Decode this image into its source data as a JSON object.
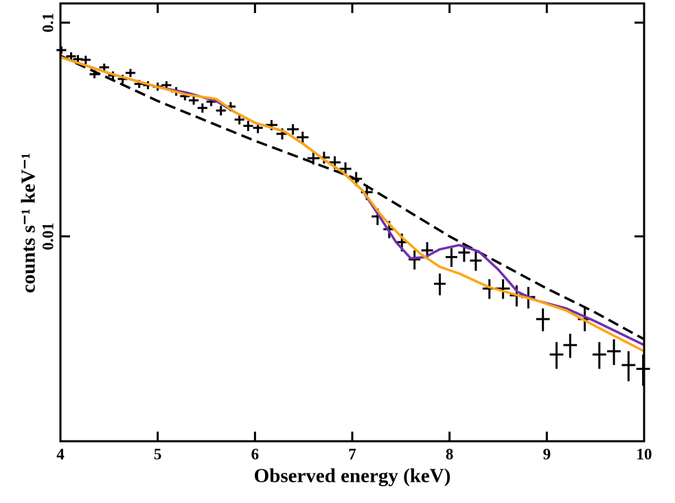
{
  "chart_data": {
    "type": "line",
    "x_label": "Observed energy (keV)",
    "y_label": "counts s⁻¹ keV⁻¹",
    "xlim": [
      4,
      10
    ],
    "xticks": [
      4,
      5,
      6,
      7,
      8,
      9,
      10
    ],
    "ylim": [
      0.0011,
      0.123
    ],
    "yticks": [
      0.01,
      0.1
    ],
    "y_log": true,
    "series": [
      {
        "style": "crosses",
        "color": "#000000",
        "x": [
          4.01,
          4.11,
          4.18,
          4.26,
          4.35,
          4.45,
          4.54,
          4.64,
          4.72,
          4.81,
          4.9,
          5.0,
          5.09,
          5.19,
          5.28,
          5.37,
          5.46,
          5.55,
          5.65,
          5.75,
          5.84,
          5.93,
          6.03,
          6.17,
          6.28,
          6.39,
          6.49,
          6.6,
          6.71,
          6.82,
          6.93,
          7.04,
          7.15,
          7.26,
          7.38,
          7.51,
          7.64,
          7.77,
          7.9,
          8.02,
          8.15,
          8.27,
          8.41,
          8.55,
          8.69,
          8.81,
          8.96,
          9.1,
          9.24,
          9.39,
          9.54,
          9.69,
          9.84,
          9.99
        ],
        "xerr": [
          0.05,
          0.05,
          0.05,
          0.05,
          0.05,
          0.05,
          0.05,
          0.05,
          0.05,
          0.05,
          0.05,
          0.05,
          0.05,
          0.05,
          0.05,
          0.05,
          0.05,
          0.05,
          0.05,
          0.05,
          0.05,
          0.05,
          0.05,
          0.06,
          0.06,
          0.06,
          0.06,
          0.06,
          0.06,
          0.06,
          0.06,
          0.06,
          0.06,
          0.06,
          0.06,
          0.06,
          0.06,
          0.06,
          0.06,
          0.06,
          0.06,
          0.06,
          0.07,
          0.07,
          0.07,
          0.07,
          0.07,
          0.07,
          0.07,
          0.07,
          0.07,
          0.07,
          0.07,
          0.07
        ],
        "values": [
          0.0744,
          0.0696,
          0.0675,
          0.067,
          0.0574,
          0.0618,
          0.0566,
          0.0545,
          0.0582,
          0.0517,
          0.051,
          0.0502,
          0.051,
          0.0477,
          0.0453,
          0.0433,
          0.0399,
          0.0427,
          0.0388,
          0.0405,
          0.0352,
          0.0329,
          0.0322,
          0.0332,
          0.0302,
          0.0317,
          0.0291,
          0.0232,
          0.0234,
          0.0222,
          0.0207,
          0.0186,
          0.0161,
          0.0124,
          0.0108,
          0.0094,
          0.0078,
          0.0086,
          0.006,
          0.008,
          0.0084,
          0.0077,
          0.0057,
          0.0057,
          0.0053,
          0.0052,
          0.0041,
          0.0028,
          0.0031,
          0.0041,
          0.0028,
          0.0029,
          0.0025,
          0.0024
        ],
        "yerr": [
          0.003,
          0.003,
          0.003,
          0.003,
          0.0025,
          0.0025,
          0.0025,
          0.0025,
          0.0025,
          0.0022,
          0.0022,
          0.0022,
          0.0022,
          0.0022,
          0.002,
          0.002,
          0.002,
          0.002,
          0.002,
          0.002,
          0.0018,
          0.0018,
          0.0018,
          0.0018,
          0.0018,
          0.0018,
          0.0018,
          0.0015,
          0.0015,
          0.0015,
          0.0015,
          0.0014,
          0.0013,
          0.0011,
          0.001,
          0.0009,
          0.0008,
          0.0008,
          0.0007,
          0.0008,
          0.0008,
          0.0008,
          0.0006,
          0.0006,
          0.0006,
          0.0006,
          0.0005,
          0.0004,
          0.0004,
          0.0005,
          0.0004,
          0.0004,
          0.0004,
          0.0004
        ]
      },
      {
        "style": "dashed",
        "color": "#000000",
        "x": [
          4,
          5,
          6,
          7,
          8,
          9,
          9.5,
          10
        ],
        "values": [
          0.07,
          0.043,
          0.028,
          0.0189,
          0.01,
          0.0057,
          0.0044,
          0.0033
        ]
      },
      {
        "style": "solid",
        "color": "#7030b0",
        "x": [
          4,
          4.5,
          5,
          5.3,
          5.6,
          5.8,
          6.0,
          6.3,
          6.5,
          6.7,
          6.9,
          7.1,
          7.3,
          7.45,
          7.6,
          7.75,
          7.9,
          8.1,
          8.3,
          8.5,
          8.7,
          8.9,
          9.2,
          9.5,
          10
        ],
        "values": [
          0.069,
          0.058,
          0.05,
          0.047,
          0.043,
          0.038,
          0.034,
          0.031,
          0.027,
          0.023,
          0.02,
          0.0165,
          0.012,
          0.0094,
          0.0079,
          0.008,
          0.0087,
          0.0091,
          0.0085,
          0.007,
          0.0055,
          0.005,
          0.0046,
          0.004,
          0.0031
        ]
      },
      {
        "style": "solid",
        "color": "#ffa510",
        "x": [
          4,
          4.5,
          5,
          5.3,
          5.6,
          5.8,
          6.0,
          6.3,
          6.5,
          6.7,
          6.9,
          7.1,
          7.3,
          7.5,
          7.7,
          7.9,
          8.1,
          8.4,
          8.7,
          8.9,
          9.2,
          9.5,
          10
        ],
        "values": [
          0.069,
          0.058,
          0.05,
          0.046,
          0.044,
          0.038,
          0.034,
          0.031,
          0.027,
          0.023,
          0.02,
          0.0165,
          0.0125,
          0.01,
          0.0083,
          0.0072,
          0.0067,
          0.0058,
          0.0053,
          0.005,
          0.0045,
          0.0038,
          0.0029
        ]
      }
    ]
  }
}
